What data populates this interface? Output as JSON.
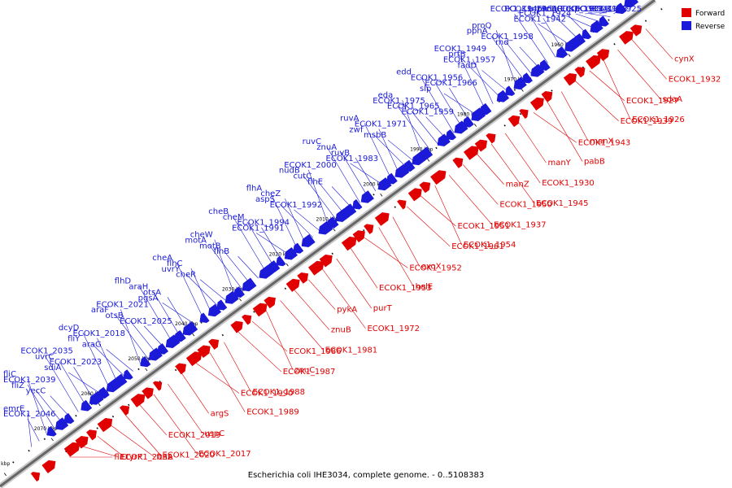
{
  "caption": "Escherichia coli IHE3034, complete genome. - 0..5108383",
  "legend": {
    "forward": "Forward",
    "reverse": "Reverse"
  },
  "colors": {
    "forward": "#e00000",
    "reverse": "#1a1ad8",
    "backbone": "#7a7a7a"
  },
  "ticks": [
    "1960 kbp",
    "1970 kbp",
    "1980 kbp",
    "1990 kbp",
    "2000 kbp",
    "2010 kbp",
    "2020 kbp",
    "2030 kbp",
    "2040 kbp",
    "2050 kbp",
    "2060 kbp",
    "2070 kbp",
    "2080 kbp"
  ],
  "reverse_labels": [
    "ECOK1_1925",
    "ECOK1_1928",
    "ECOK1_1941",
    "cspC",
    "ECOK1_1933",
    "prc",
    "kdgR",
    "rrmA",
    "ECOK1_1942",
    "ECOK1_1924",
    "ECOK1_1964",
    "ECOK1_1946",
    "rnd",
    "ECOK1_1958",
    "pphA",
    "proQ",
    "fadD",
    "ECOK1_1957",
    "prtB",
    "ECOK1_1949",
    "slp",
    "ECOK1_1966",
    "ECOK1_1956",
    "edd",
    "ECOK1_1959",
    "ECOK1_1965",
    "ECOK1_1975",
    "eda",
    "msbB",
    "zwf",
    "ECOK1_1971",
    "ruvA",
    "ECOK1_1983",
    "ruvB",
    "znuA",
    "ruvC",
    "flhE",
    "cutC",
    "nudB",
    "ECOK1_2000",
    "ECOK1_1992",
    "aspS",
    "cheZ",
    "flhA",
    "ECOK1_1991",
    "ECOK1_1994",
    "cheM",
    "cheB",
    "flhB",
    "motB",
    "motA",
    "cheW",
    "cheR",
    "uvrY",
    "flhC",
    "cheA",
    "pgsA",
    "otsA",
    "araH",
    "flhD",
    "ECOK1_2025",
    "otsB",
    "araF",
    "ECOK1_2021",
    "araG",
    "fliY",
    "ECOK1_2018",
    "dcyD",
    "sdiA",
    "ECOK1_2023",
    "uvrC",
    "ECOK1_2035",
    "yecC",
    "fliZ",
    "ECOK1_2039",
    "fliC",
    "ECOK1_2046",
    "emrE"
  ],
  "forward_labels": [
    "cynX",
    "ECOK1_1932",
    "sdaA",
    "ECOK1_1926",
    "ECOK1_1927",
    "ECOK1_1939",
    "manX",
    "pabB",
    "ECOK1_1943",
    "manY",
    "ECOK1_1930",
    "ECOK1_1945",
    "manZ",
    "ECOK1_1950",
    "ECOK1_1937",
    "ECOK1_1954",
    "ECOK1_1951",
    "ECOK1_1961",
    "exoX",
    "holE",
    "ECOK1_1952",
    "ECOK1_1953",
    "purT",
    "ECOK1_1972",
    "pykA",
    "znuB",
    "ECOK1_1981",
    "znuC",
    "ECOK1_1986",
    "ECOK1_1987",
    "ECOK1_1988",
    "ECOK1_1989",
    "ECOK1_1990",
    "argS",
    "uspC",
    "ECOK1_2017",
    "ECOK1_2019",
    "ECOK1_2020",
    "ftnA",
    "tyrP",
    "ECOK1_2032",
    "fliD"
  ]
}
